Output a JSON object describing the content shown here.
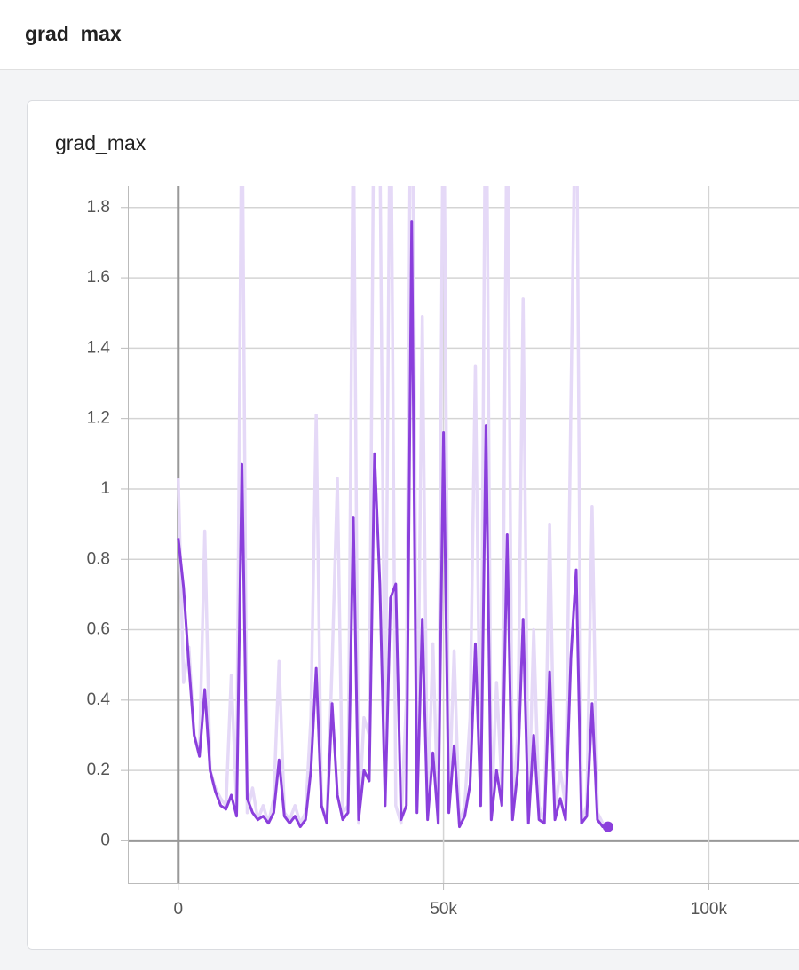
{
  "header": {
    "title": "grad_max"
  },
  "chart_data": {
    "type": "line",
    "title": "grad_max",
    "x": [
      0,
      1000,
      2000,
      3000,
      4000,
      5000,
      6000,
      7000,
      8000,
      9000,
      10000,
      11000,
      12000,
      13000,
      14000,
      15000,
      16000,
      17000,
      18000,
      19000,
      20000,
      21000,
      22000,
      23000,
      24000,
      25000,
      26000,
      27000,
      28000,
      29000,
      30000,
      31000,
      32000,
      33000,
      34000,
      35000,
      36000,
      37000,
      38000,
      39000,
      40000,
      41000,
      42000,
      43000,
      44000,
      45000,
      46000,
      47000,
      48000,
      49000,
      50000,
      51000,
      52000,
      53000,
      54000,
      55000,
      56000,
      57000,
      58000,
      59000,
      60000,
      61000,
      62000,
      63000,
      64000,
      65000,
      66000,
      67000,
      68000,
      69000,
      70000,
      71000,
      72000,
      73000,
      74000,
      75000,
      76000,
      77000,
      78000,
      79000,
      80000,
      81000
    ],
    "series": [
      {
        "color": "#e5d9f7",
        "values": [
          1.03,
          0.45,
          0.55,
          0.3,
          0.25,
          0.88,
          0.2,
          0.15,
          0.12,
          0.1,
          0.47,
          0.1,
          2.2,
          0.08,
          0.15,
          0.06,
          0.1,
          0.05,
          0.12,
          0.51,
          0.08,
          0.06,
          0.1,
          0.05,
          0.08,
          0.35,
          1.21,
          0.1,
          0.06,
          0.5,
          1.03,
          0.08,
          0.1,
          2.1,
          0.05,
          0.35,
          0.3,
          2.4,
          2.0,
          0.2,
          2.3,
          0.1,
          0.05,
          0.4,
          2.6,
          0.1,
          1.49,
          0.08,
          0.56,
          0.05,
          2.3,
          0.1,
          0.54,
          0.05,
          0.1,
          0.35,
          1.35,
          0.1,
          2.4,
          0.06,
          0.45,
          0.15,
          2.2,
          0.08,
          0.3,
          1.54,
          0.06,
          0.6,
          0.1,
          0.05,
          0.9,
          0.08,
          0.2,
          0.1,
          1.23,
          2.3,
          0.06,
          0.1,
          0.95,
          0.08,
          0.05,
          0.04
        ]
      },
      {
        "color": "#8b3fdc",
        "values": [
          0.86,
          0.72,
          0.5,
          0.3,
          0.24,
          0.43,
          0.2,
          0.14,
          0.1,
          0.09,
          0.13,
          0.07,
          1.07,
          0.12,
          0.08,
          0.06,
          0.07,
          0.05,
          0.08,
          0.23,
          0.07,
          0.05,
          0.07,
          0.04,
          0.06,
          0.2,
          0.49,
          0.1,
          0.05,
          0.39,
          0.13,
          0.06,
          0.08,
          0.92,
          0.06,
          0.2,
          0.17,
          1.1,
          0.73,
          0.1,
          0.69,
          0.73,
          0.06,
          0.1,
          1.76,
          0.08,
          0.63,
          0.06,
          0.25,
          0.05,
          1.16,
          0.08,
          0.27,
          0.04,
          0.07,
          0.16,
          0.56,
          0.1,
          1.18,
          0.06,
          0.2,
          0.1,
          0.87,
          0.06,
          0.2,
          0.63,
          0.05,
          0.3,
          0.06,
          0.05,
          0.48,
          0.06,
          0.12,
          0.06,
          0.52,
          0.77,
          0.05,
          0.07,
          0.39,
          0.06,
          0.04,
          0.04
        ]
      }
    ],
    "xlim": [
      -9500,
      117000
    ],
    "ylim": [
      -0.12,
      1.86
    ],
    "xticks": [
      0,
      {
        "value": 50000,
        "label": "50k"
      },
      {
        "value": 100000,
        "label": "100k"
      }
    ],
    "yticks": [
      0,
      0.2,
      0.4,
      0.6,
      0.8,
      1,
      1.2,
      1.4,
      1.6,
      1.8
    ],
    "grid": true
  }
}
